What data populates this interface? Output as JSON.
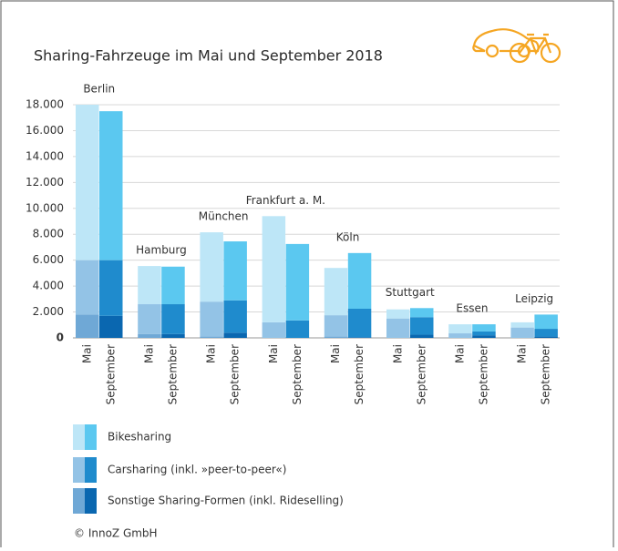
{
  "chart_data": {
    "type": "grouped-stacked-bar",
    "title": "Sharing-Fahrzeuge im Mai und September 2018",
    "groups": [
      "Berlin",
      "Hamburg",
      "München",
      "Frankfurt a. M.",
      "Köln",
      "Stuttgart",
      "Essen",
      "Leipzig"
    ],
    "categories": [
      "Mai",
      "September"
    ],
    "series": [
      {
        "name": "Sonstige Sharing-Formen (inkl. Rideselling)",
        "colors": [
          "#6fa8d6",
          "#0a67b0"
        ],
        "values": [
          [
            1800,
            1700
          ],
          [
            300,
            300
          ],
          [
            100,
            400
          ],
          [
            0,
            0
          ],
          [
            100,
            50
          ],
          [
            0,
            250
          ],
          [
            0,
            200
          ],
          [
            0,
            100
          ]
        ]
      },
      {
        "name": "Carsharing (inkl. »peer-to-peer«)",
        "colors": [
          "#93c3e6",
          "#1f8bcd"
        ],
        "values": [
          [
            4200,
            4300
          ],
          [
            2300,
            2300
          ],
          [
            2700,
            2500
          ],
          [
            1200,
            1350
          ],
          [
            1650,
            2200
          ],
          [
            1500,
            1350
          ],
          [
            350,
            300
          ],
          [
            800,
            600
          ]
        ]
      },
      {
        "name": "Bikesharing",
        "colors": [
          "#bde6f7",
          "#5bc8f0"
        ],
        "values": [
          [
            12000,
            11500
          ],
          [
            2950,
            2900
          ],
          [
            5350,
            4550
          ],
          [
            8200,
            5900
          ],
          [
            3650,
            4300
          ],
          [
            700,
            700
          ],
          [
            700,
            550
          ],
          [
            400,
            1100
          ]
        ]
      }
    ],
    "ylim": [
      0,
      18000
    ],
    "yticks": [
      0,
      {
        "value": 2000,
        "label": "2.000"
      },
      {
        "value": 4000,
        "label": "4.000"
      },
      {
        "value": 6000,
        "label": "6.000"
      },
      {
        "value": 8000,
        "label": "8.000"
      },
      {
        "value": 10000,
        "label": "10.000"
      },
      {
        "value": 12000,
        "label": "12.000"
      },
      {
        "value": 14000,
        "label": "14.000"
      },
      {
        "value": 16000,
        "label": "16.000"
      },
      {
        "value": 18000,
        "label": "18.000"
      }
    ],
    "grid": true,
    "source": "© InnoZ GmbH"
  }
}
